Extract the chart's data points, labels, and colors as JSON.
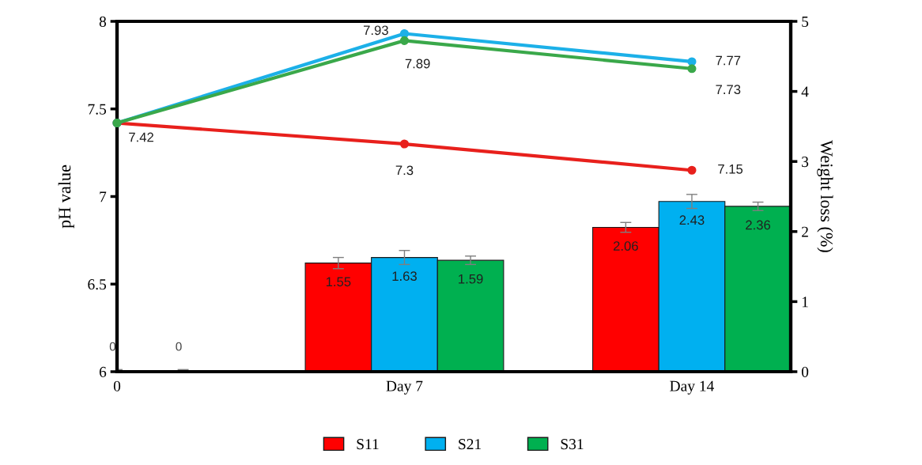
{
  "chart_data": {
    "type": "bar",
    "ylabel": "pH value",
    "y2label": "Weight loss (%)",
    "categories": [
      "0",
      "Day 7",
      "Day 14"
    ],
    "ylim": [
      6,
      8
    ],
    "yticks": [
      6,
      6.5,
      7,
      7.5,
      8
    ],
    "y2lim": [
      0,
      5
    ],
    "y2ticks": [
      0,
      1,
      2,
      3,
      4,
      5
    ],
    "legend": "bottom",
    "grid": false,
    "series": [
      {
        "name": "S11",
        "axis": "y2",
        "color": "#ff0000",
        "values": [
          null,
          1.55,
          2.06
        ],
        "errors": [
          null,
          0.08,
          0.07
        ],
        "value_labels": [
          null,
          "1.55",
          "2.06"
        ]
      },
      {
        "name": "S21",
        "axis": "y2",
        "color": "#00b0f0",
        "values": [
          0,
          1.63,
          2.43
        ],
        "errors": [
          0.03,
          0.1,
          0.1
        ],
        "value_labels": [
          "0",
          "1.63",
          "2.43"
        ]
      },
      {
        "name": "S31",
        "axis": "y2",
        "color": "#00b050",
        "values": [
          0,
          1.59,
          2.36
        ],
        "errors": [
          0.03,
          0.06,
          0.06
        ],
        "value_labels": [
          "0",
          "1.59",
          "2.36"
        ]
      },
      {
        "type": "line",
        "axis": "y",
        "color": "#e8201c",
        "marker": "circle",
        "values": [
          7.42,
          7.3,
          7.15
        ],
        "value_labels": [
          "7.42",
          "7.3",
          "7.15"
        ]
      },
      {
        "type": "line",
        "axis": "y",
        "color": "#1cb0e8",
        "marker": "circle",
        "values": [
          7.42,
          7.93,
          7.77
        ],
        "value_labels": [
          null,
          "7.93",
          "7.77"
        ]
      },
      {
        "type": "line",
        "axis": "y",
        "color": "#3aa84a",
        "marker": "circle",
        "values": [
          7.42,
          7.89,
          7.73
        ],
        "value_labels": [
          null,
          "7.89",
          "7.73"
        ]
      }
    ]
  }
}
